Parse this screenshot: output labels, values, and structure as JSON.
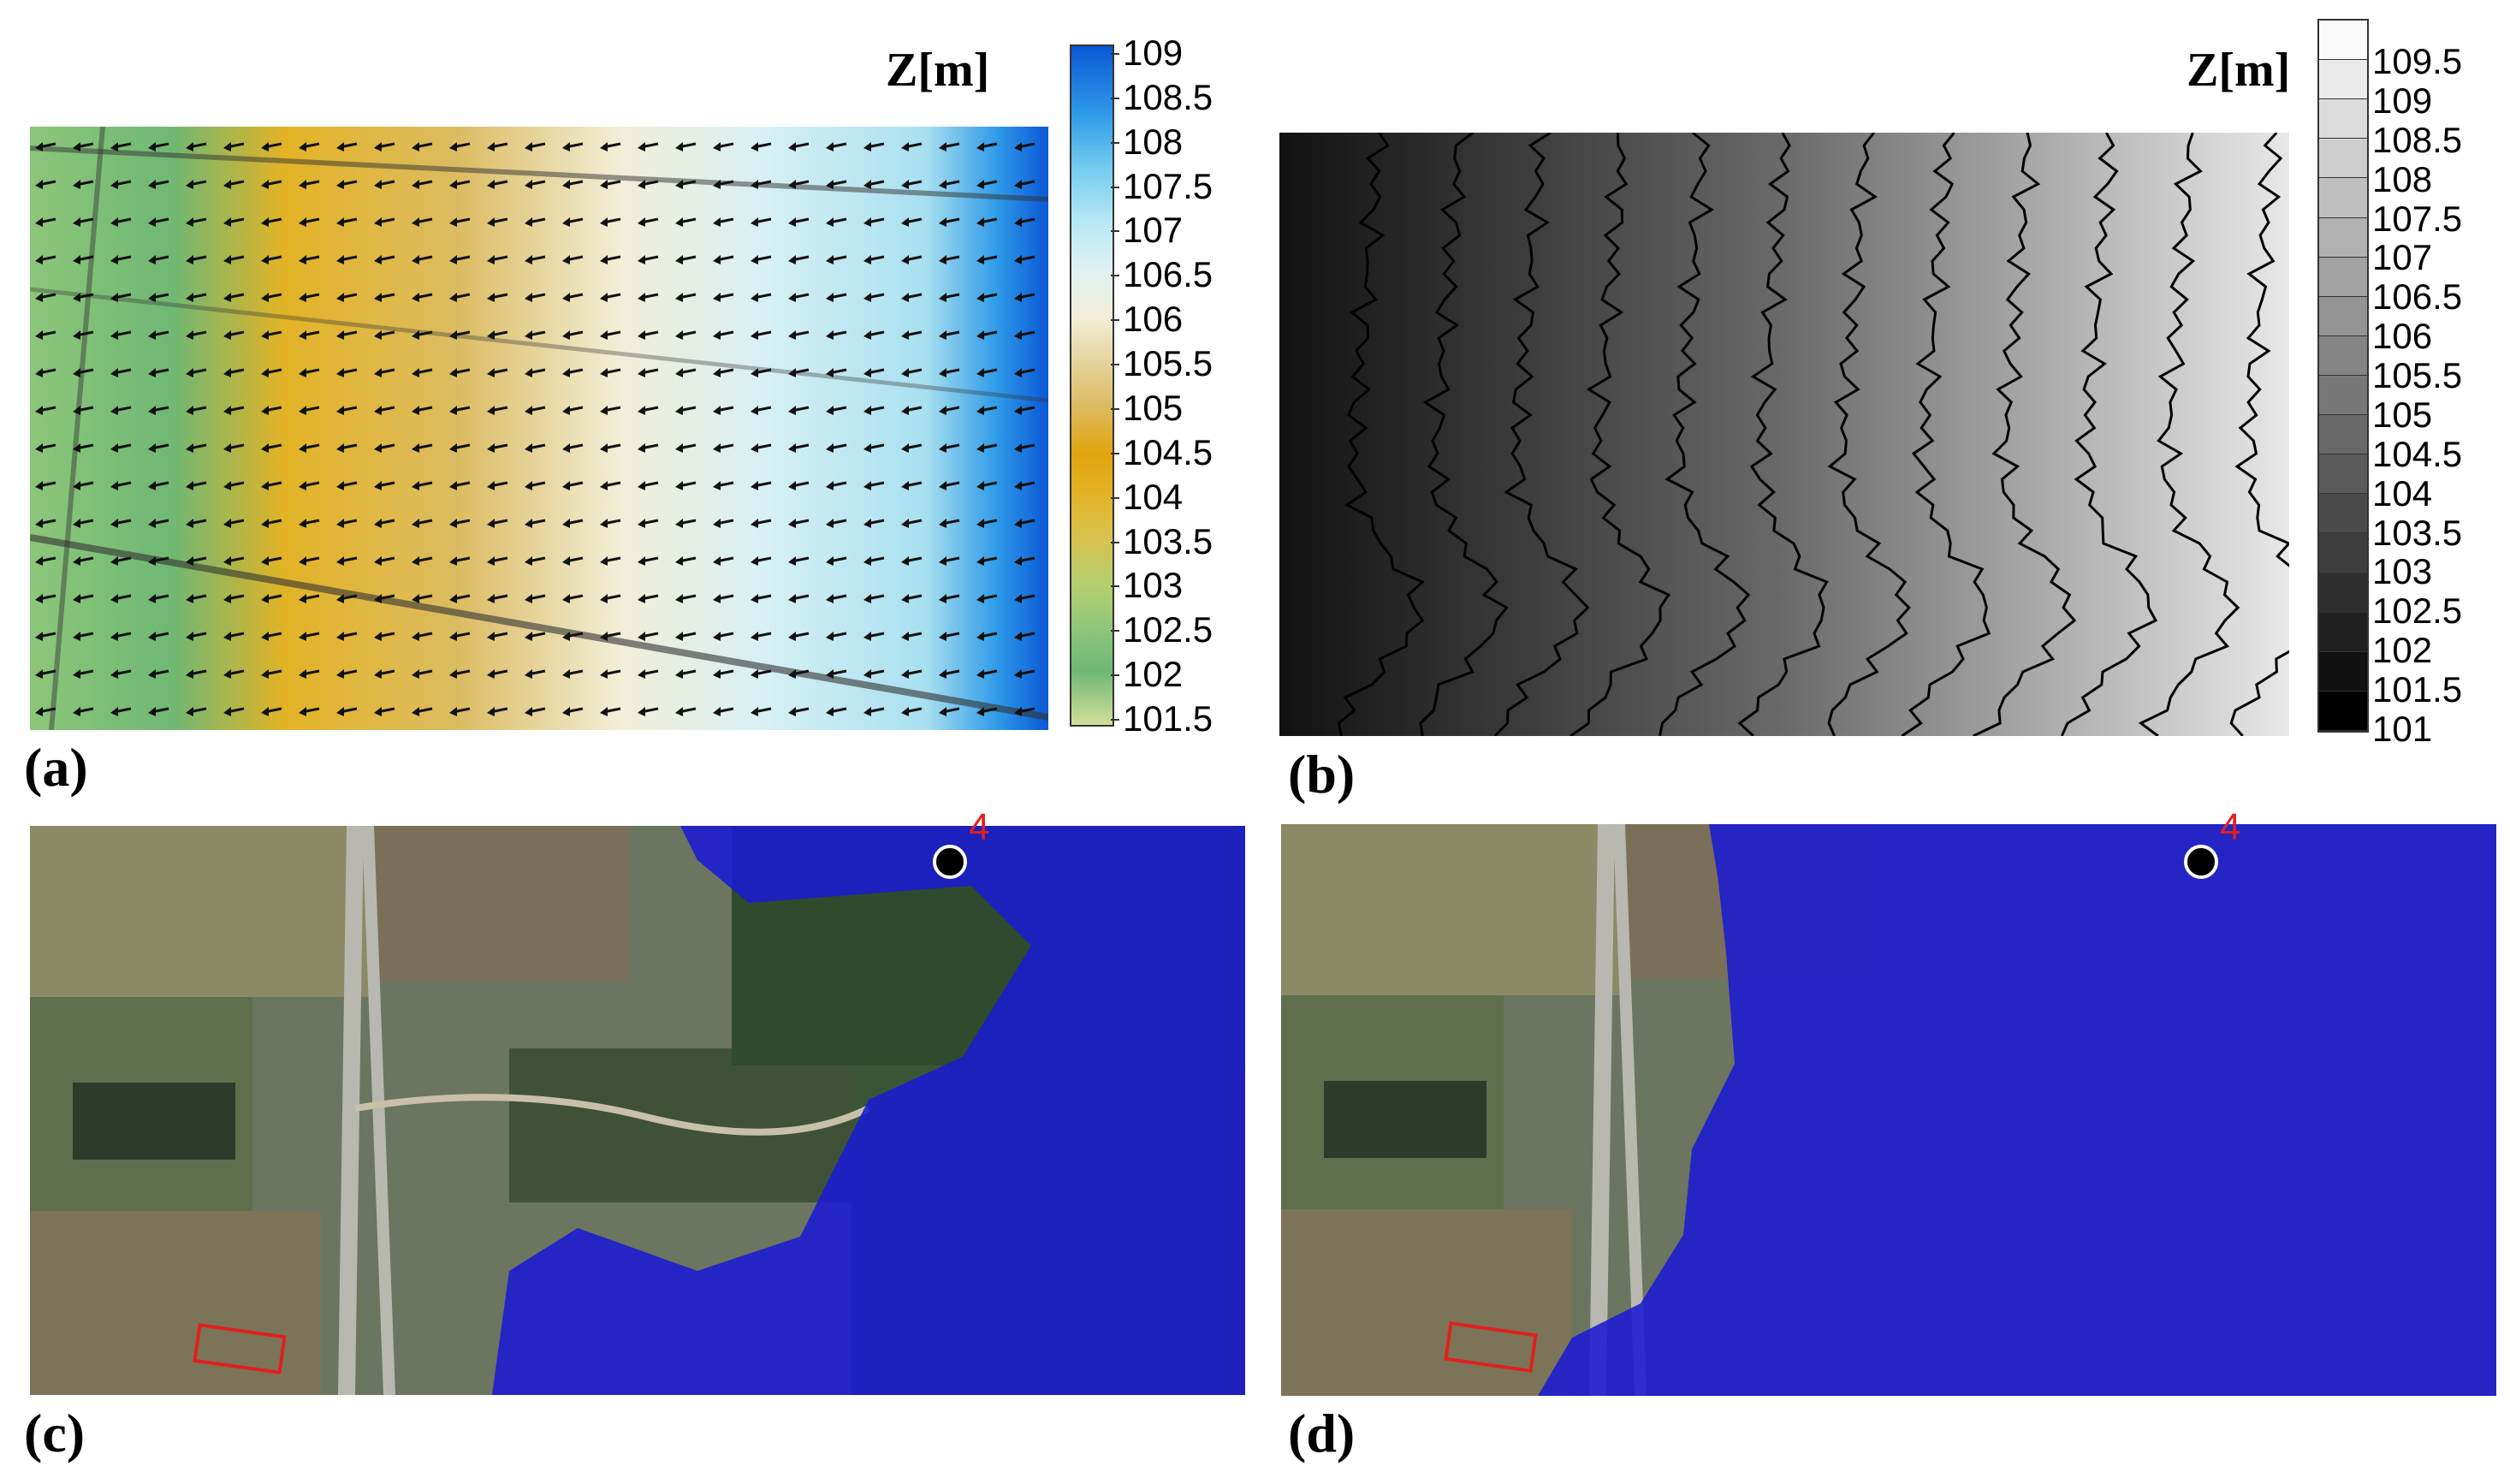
{
  "panels": {
    "a": {
      "label": "(a)",
      "legend_title": "Z[m]",
      "legend_ticks": [
        "109",
        "108.5",
        "108",
        "107.5",
        "107",
        "106.5",
        "106",
        "105.5",
        "105",
        "104.5",
        "104",
        "103.5",
        "103",
        "102.5",
        "102",
        "101.5"
      ],
      "colormap": [
        "#0a58d6",
        "#2f9ae8",
        "#74cdf0",
        "#b7e8f4",
        "#e0f2f2",
        "#f2eed8",
        "#e6d6a2",
        "#dcbc62",
        "#e2a40e",
        "#e3b326",
        "#d9c24c",
        "#b8cf6e",
        "#8ec67c",
        "#6fb874",
        "#8cc67a",
        "#d2df9a"
      ]
    },
    "b": {
      "label": "(b)",
      "legend_title": "Z[m]",
      "legend_ticks": [
        "109.5",
        "109",
        "108.5",
        "108",
        "107.5",
        "107",
        "106.5",
        "106",
        "105.5",
        "105",
        "104.5",
        "104",
        "103.5",
        "103",
        "102.5",
        "102",
        "101.5",
        "101"
      ],
      "colormap": [
        "#fafafa",
        "#ebebeb",
        "#dcdcdc",
        "#cecece",
        "#bfbfbf",
        "#b1b1b1",
        "#a2a2a2",
        "#949494",
        "#858585",
        "#777777",
        "#686868",
        "#5a5a5a",
        "#4b4b4b",
        "#3d3d3d",
        "#2e2e2e",
        "#202020",
        "#111111",
        "#000000"
      ]
    },
    "c": {
      "label": "(c)",
      "marker_label": "4"
    },
    "d": {
      "label": "(d)",
      "marker_label": "4"
    }
  },
  "colors": {
    "flood_blue": "#1a1ad2",
    "marker_red": "#e02020",
    "contour_line": "#000000"
  },
  "icons": [
    "arrow-vector-icon",
    "location-marker-icon",
    "study-area-rectangle"
  ]
}
